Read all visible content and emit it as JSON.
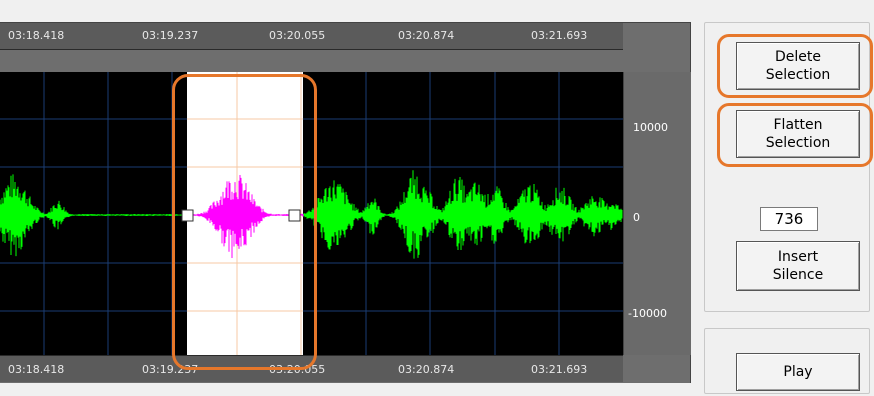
{
  "time_ruler": {
    "top_labels": [
      "03:18.418",
      "03:19.237",
      "03:20.055",
      "03:20.874",
      "03:21.693"
    ],
    "bottom_labels": [
      "03:18.418",
      "03:19.237",
      "03:20.055",
      "03:20.874",
      "03:21.693"
    ]
  },
  "amplitude_axis": {
    "ticks": [
      "10000",
      "0",
      "-10000"
    ]
  },
  "waveform": {
    "selection_color": "#ffffff",
    "selected_wave_color": "#ff00ff",
    "wave_color": "#00ff00",
    "grid_color": "#1a3d73",
    "highlight_color": "#e6772b"
  },
  "actions": {
    "delete_selection": [
      "Delete",
      "Selection"
    ],
    "flatten_selection": [
      "Flatten",
      "Selection"
    ],
    "silence_length": "736",
    "insert_silence": [
      "Insert",
      "Silence"
    ],
    "play": "Play"
  }
}
